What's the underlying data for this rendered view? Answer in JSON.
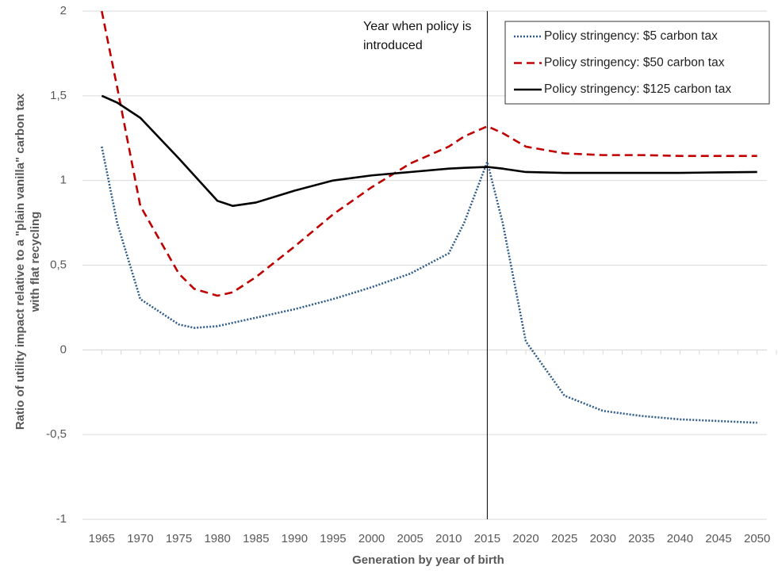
{
  "chart_data": {
    "type": "line",
    "x_label": "Generation by year of birth",
    "y_label": "Ratio of utility impact relative to a \"plain vanilla\" carbon tax with flat recycling",
    "annotation": {
      "text": "Year when policy is introduced",
      "x": 2015
    },
    "x": [
      1965,
      1967,
      1970,
      1975,
      1977,
      1980,
      1982,
      1985,
      1990,
      1995,
      2000,
      2005,
      2010,
      2012,
      2015,
      2017,
      2020,
      2025,
      2030,
      2035,
      2040,
      2045,
      2050
    ],
    "series": [
      {
        "name": "Policy stringency: $5 carbon tax",
        "color": "#2e5c8a",
        "style": "dotted",
        "values": [
          1.2,
          0.75,
          0.3,
          0.15,
          0.13,
          0.14,
          0.16,
          0.19,
          0.24,
          0.3,
          0.37,
          0.45,
          0.57,
          0.75,
          1.11,
          0.75,
          0.05,
          -0.27,
          -0.36,
          -0.39,
          -0.41,
          -0.42,
          -0.43
        ]
      },
      {
        "name": "Policy stringency: $50 carbon tax",
        "color": "#c00000",
        "style": "dashed",
        "values": [
          2.0,
          1.55,
          0.85,
          0.45,
          0.36,
          0.32,
          0.34,
          0.43,
          0.61,
          0.8,
          0.96,
          1.1,
          1.2,
          1.26,
          1.32,
          1.28,
          1.2,
          1.16,
          1.15,
          1.15,
          1.145,
          1.145,
          1.145
        ]
      },
      {
        "name": "Policy stringency: $125 carbon tax",
        "color": "#000000",
        "style": "solid",
        "values": [
          1.5,
          1.46,
          1.37,
          1.13,
          1.03,
          0.88,
          0.85,
          0.87,
          0.94,
          1.0,
          1.03,
          1.05,
          1.07,
          1.075,
          1.08,
          1.07,
          1.05,
          1.045,
          1.045,
          1.045,
          1.045,
          1.048,
          1.05
        ]
      }
    ],
    "xlim": [
      1962.5,
      2052.5
    ],
    "xticks": [
      1965,
      1970,
      1975,
      1980,
      1985,
      1990,
      1995,
      2000,
      2005,
      2010,
      2015,
      2020,
      2025,
      2030,
      2035,
      2040,
      2045,
      2050
    ],
    "ylim": [
      -1,
      2
    ],
    "yticks": [
      -1,
      {
        "value": -0.5,
        "label": "-0,5"
      },
      0,
      {
        "value": 0.5,
        "label": "0,5"
      },
      1,
      {
        "value": 1.5,
        "label": "1,5"
      },
      2
    ],
    "grid": true,
    "legend": "top-right"
  }
}
